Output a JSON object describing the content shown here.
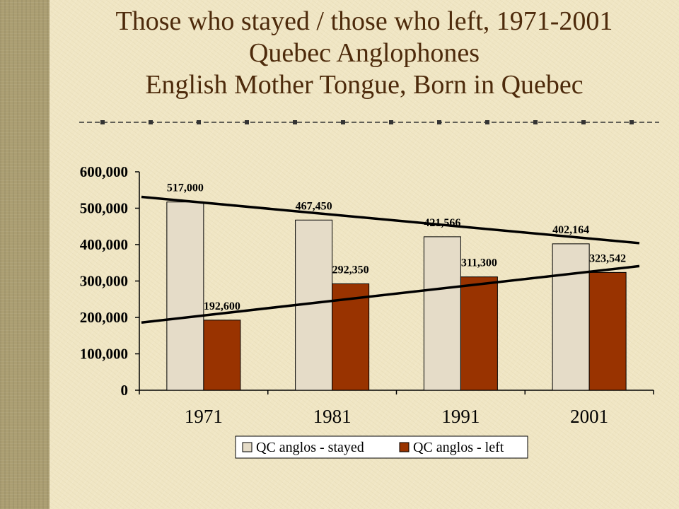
{
  "slide": {
    "title_lines": [
      "Those who stayed / those who left, 1971-2001",
      "Quebec Anglophones",
      "English Mother Tongue, Born in Quebec"
    ]
  },
  "colors": {
    "stayed": "#e5dcc8",
    "left": "#993300",
    "trend": "#000000",
    "title": "#4d2a0b"
  },
  "chart_data": {
    "type": "bar",
    "categories": [
      "1971",
      "1981",
      "1991",
      "2001"
    ],
    "series": [
      {
        "name": "QC anglos - stayed",
        "values": [
          517000,
          467450,
          421566,
          402164
        ],
        "labels": [
          "517,000",
          "467,450",
          "421,566",
          "402,164"
        ]
      },
      {
        "name": "QC anglos - left",
        "values": [
          192600,
          292350,
          311300,
          323542
        ],
        "labels": [
          "192,600",
          "292,350",
          "311,300",
          "323,542"
        ]
      }
    ],
    "trendlines": [
      {
        "series": "QC anglos - stayed",
        "start": 531000,
        "end": 404000
      },
      {
        "series": "QC anglos - left",
        "start": 186000,
        "end": 341000
      }
    ],
    "ylim": [
      0,
      600000
    ],
    "yticks": [
      0,
      100000,
      200000,
      300000,
      400000,
      500000,
      600000
    ],
    "ytick_labels": [
      "0",
      "100,000",
      "200,000",
      "300,000",
      "400,000",
      "500,000",
      "600,000"
    ],
    "grid": false,
    "legend": "bottom"
  }
}
